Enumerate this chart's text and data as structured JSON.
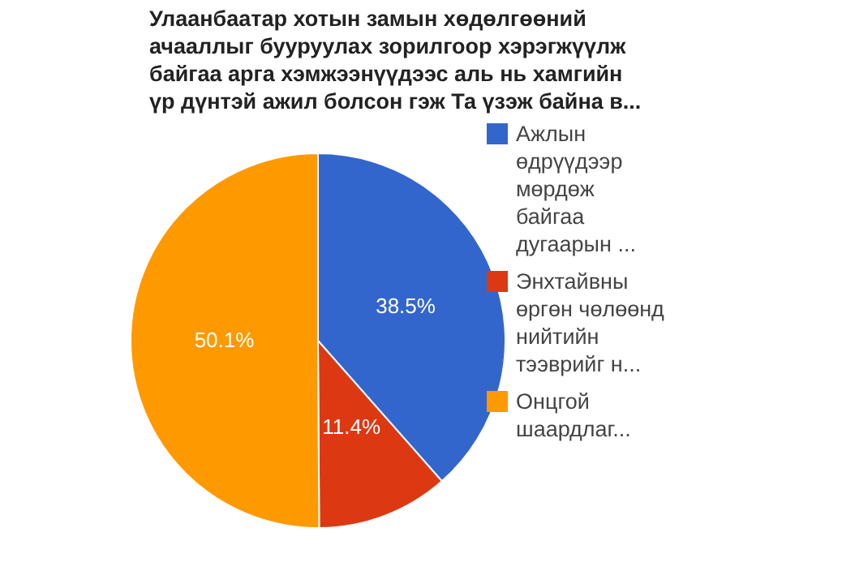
{
  "chart_data": {
    "type": "pie",
    "title": "Улаанбаатар хотын замын хөдөлгөөний ачааллыг бууруулах зорилгоор хэрэгжүүлж байгаа арга хэмжээнүүдээс аль нь хамгийн үр дүнтэй ажил болсон гэж Та үзэж байна в...",
    "categories": [
      "Ажлын өдрүүдээр мөрдөж байгаа дугаарын ...",
      "Энхтайвны өргөн чөлөөнд нийтийн тээврийг н...",
      "Онцгой шаардлаг..."
    ],
    "values": [
      38.5,
      11.4,
      50.1
    ],
    "colors": [
      "#3366cc",
      "#dc3912",
      "#ff9900"
    ],
    "value_labels": [
      "38.5%",
      "11.4%",
      "50.1%"
    ],
    "legend": "right"
  }
}
